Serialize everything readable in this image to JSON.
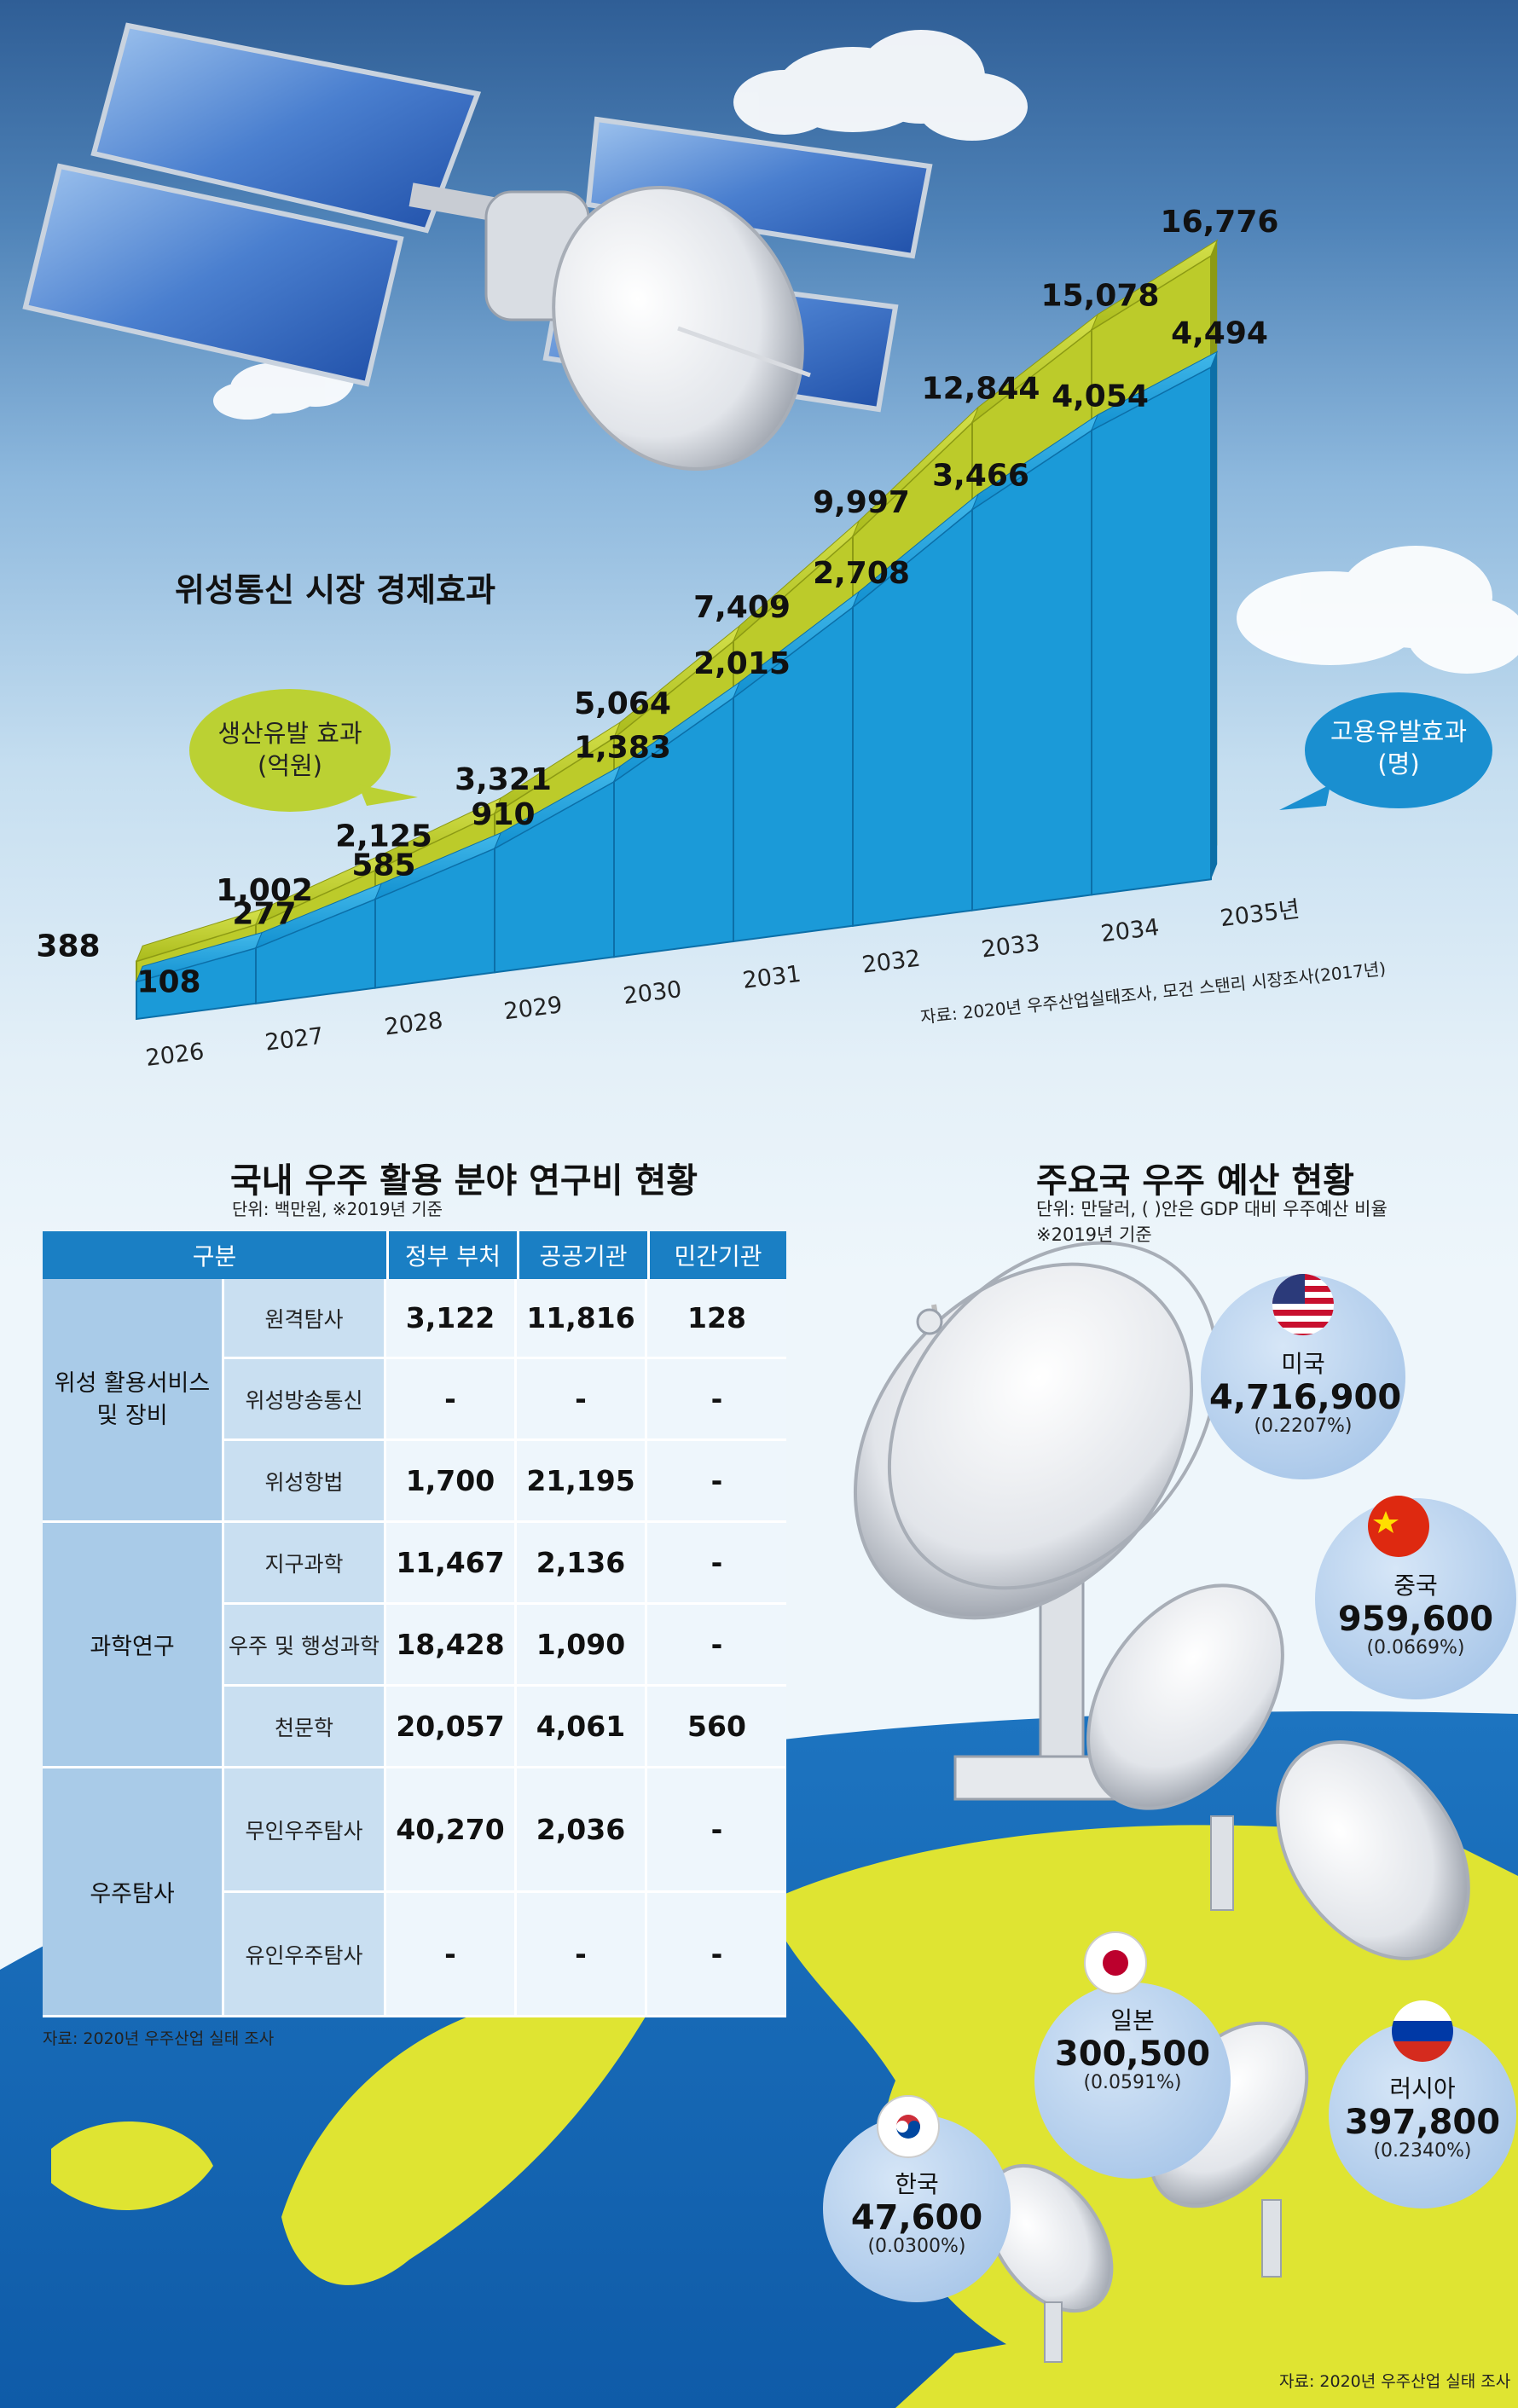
{
  "chart_data": [
    {
      "type": "area",
      "title": "위성통신 시장 경제효과",
      "x": [
        "2026",
        "2027",
        "2028",
        "2029",
        "2030",
        "2031",
        "2032",
        "2033",
        "2034",
        "2035년"
      ],
      "series": [
        {
          "name": "생산유발 효과 (억원)",
          "values": [
            388,
            1002,
            2125,
            3321,
            5064,
            7409,
            9997,
            12844,
            15078,
            16776
          ],
          "color": "#a8b81e"
        },
        {
          "name": "고용유발효과 (명)",
          "values": [
            108,
            277,
            585,
            910,
            1383,
            2015,
            2708,
            3466,
            4054,
            4494
          ],
          "color": "#1a96d4"
        }
      ],
      "value_labels": {
        "production": [
          "388",
          "1,002",
          "2,125",
          "3,321",
          "5,064",
          "7,409",
          "9,997",
          "12,844",
          "15,078",
          "16,776"
        ],
        "employment": [
          "108",
          "277",
          "585",
          "910",
          "1,383",
          "2,015",
          "2,708",
          "3,466",
          "4,054",
          "4,494"
        ]
      },
      "callouts": {
        "production_line1": "생산유발 효과",
        "production_line2": "(억원)",
        "employment_line1": "고용유발효과",
        "employment_line2": "(명)"
      },
      "source": "자료: 2020년 우주산업실태조사, 모건 스탠리 시장조사(2017년)"
    },
    {
      "type": "table",
      "title": "국내 우주 활용 분야 연구비 현황",
      "unit": "단위: 백만원, ※2019년 기준",
      "columns": [
        "구분",
        "정부 부처",
        "공공기관",
        "민간기관"
      ],
      "groups": [
        {
          "name": "위성 활용서비스\n및 장비",
          "rows": [
            {
              "label": "원격탐사",
              "values": [
                "3,122",
                "11,816",
                "128"
              ]
            },
            {
              "label": "위성방송통신",
              "values": [
                "-",
                "-",
                "-"
              ]
            },
            {
              "label": "위성항법",
              "values": [
                "1,700",
                "21,195",
                "-"
              ]
            }
          ]
        },
        {
          "name": "과학연구",
          "rows": [
            {
              "label": "지구과학",
              "values": [
                "11,467",
                "2,136",
                "-"
              ]
            },
            {
              "label": "우주 및 행성과학",
              "values": [
                "18,428",
                "1,090",
                "-"
              ]
            },
            {
              "label": "천문학",
              "values": [
                "20,057",
                "4,061",
                "560"
              ]
            }
          ]
        },
        {
          "name": "우주탐사",
          "rows": [
            {
              "label": "무인우주탐사",
              "values": [
                "40,270",
                "2,036",
                "-"
              ]
            },
            {
              "label": "유인우주탐사",
              "values": [
                "-",
                "-",
                "-"
              ]
            }
          ]
        }
      ],
      "source": "자료: 2020년 우주산업 실태 조사"
    },
    {
      "type": "bar",
      "title": "주요국 우주 예산 현황",
      "unit": "단위: 만달러, ( )안은 GDP 대비 우주예산 비율",
      "note": "※2019년 기준",
      "categories": [
        "미국",
        "중국",
        "러시아",
        "일본",
        "한국"
      ],
      "values": [
        4716900,
        959600,
        397800,
        300500,
        47600
      ],
      "value_labels": [
        "4,716,900",
        "959,600",
        "397,800",
        "300,500",
        "47,600"
      ],
      "gdp_ratio": [
        "(0.2207%)",
        "(0.0669%)",
        "(0.2340%)",
        "(0.0591%)",
        "(0.0300%)"
      ],
      "source": "자료: 2020년 우주산업 실태 조사"
    }
  ]
}
